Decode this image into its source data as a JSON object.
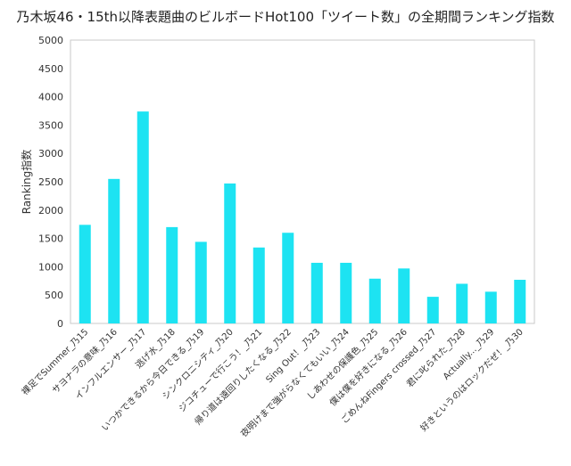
{
  "chart_data": {
    "type": "bar",
    "title": "乃木坂46・15th以降表題曲のビルボードHot100「ツイート数」の全期間ランキング指数",
    "xlabel": "",
    "ylabel": "Ranking指数",
    "ylim": [
      0,
      5000
    ],
    "yticks": [
      0,
      500,
      1000,
      1500,
      2000,
      2500,
      3000,
      3500,
      4000,
      4500,
      5000
    ],
    "grid": false,
    "legend": "none",
    "bar_color": "#1de3f2",
    "categories": [
      "裸足でSummer_乃15",
      "サヨナラの意味_乃16",
      "インフルエンサー_乃17",
      "逃げ水_乃18",
      "いつかできるから今日できる_乃19",
      "シンクロニシティ_乃20",
      "ジコチューで行こう！_乃21",
      "帰り道は遠回りしたくなる_乃22",
      "Sing Out！_乃23",
      "夜明けまで強がらなくてもいい_乃24",
      "しあわせの保護色_乃25",
      "僕は僕を好きになる_乃26",
      "ごめんねFingers crossed_乃27",
      "君に叱られた_乃28",
      "Actually..._乃29",
      "好きというのはロックだぜ！_乃30"
    ],
    "values": [
      1740,
      2550,
      3740,
      1700,
      1440,
      2470,
      1340,
      1600,
      1070,
      1070,
      790,
      970,
      470,
      700,
      560,
      770
    ]
  }
}
